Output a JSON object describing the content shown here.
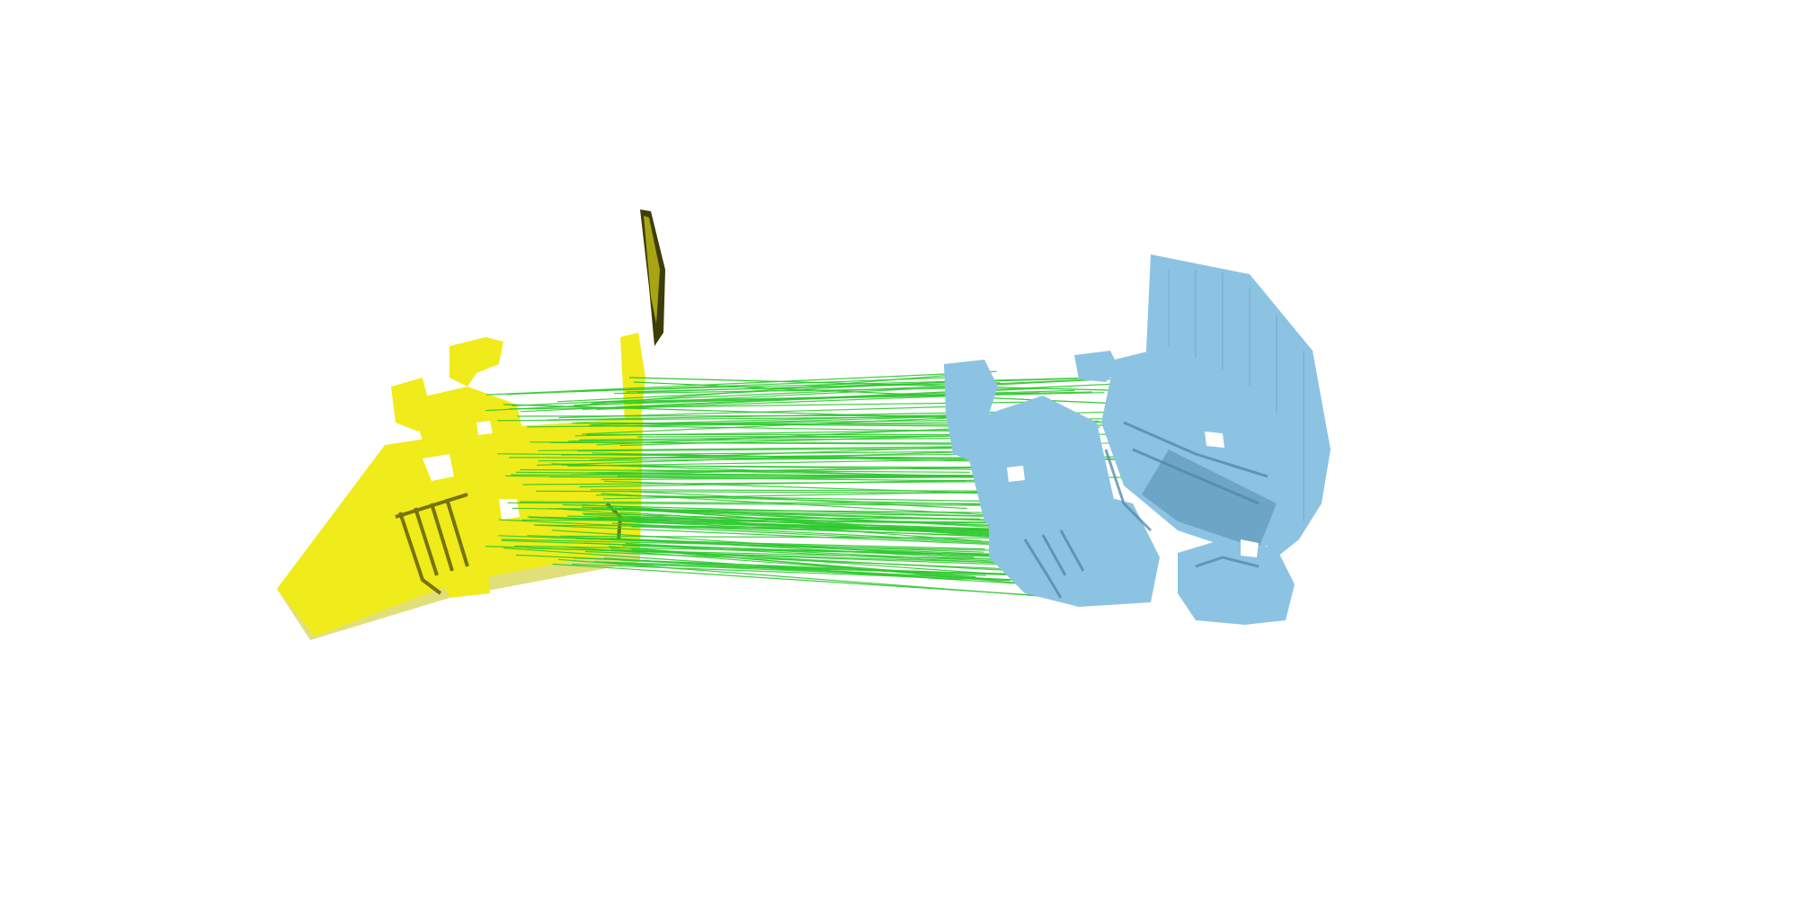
{
  "scene": {
    "background": "#ffffff",
    "source_cloud": {
      "color": "#f0eb1a",
      "shade": "#c9c40c",
      "dark": "#4f4c08"
    },
    "target_cloud": {
      "color": "#8cc3e3",
      "shade": "#5f98bb",
      "dark": "#3e6f8e"
    },
    "correspondence": {
      "color": "#2fc92f"
    }
  }
}
